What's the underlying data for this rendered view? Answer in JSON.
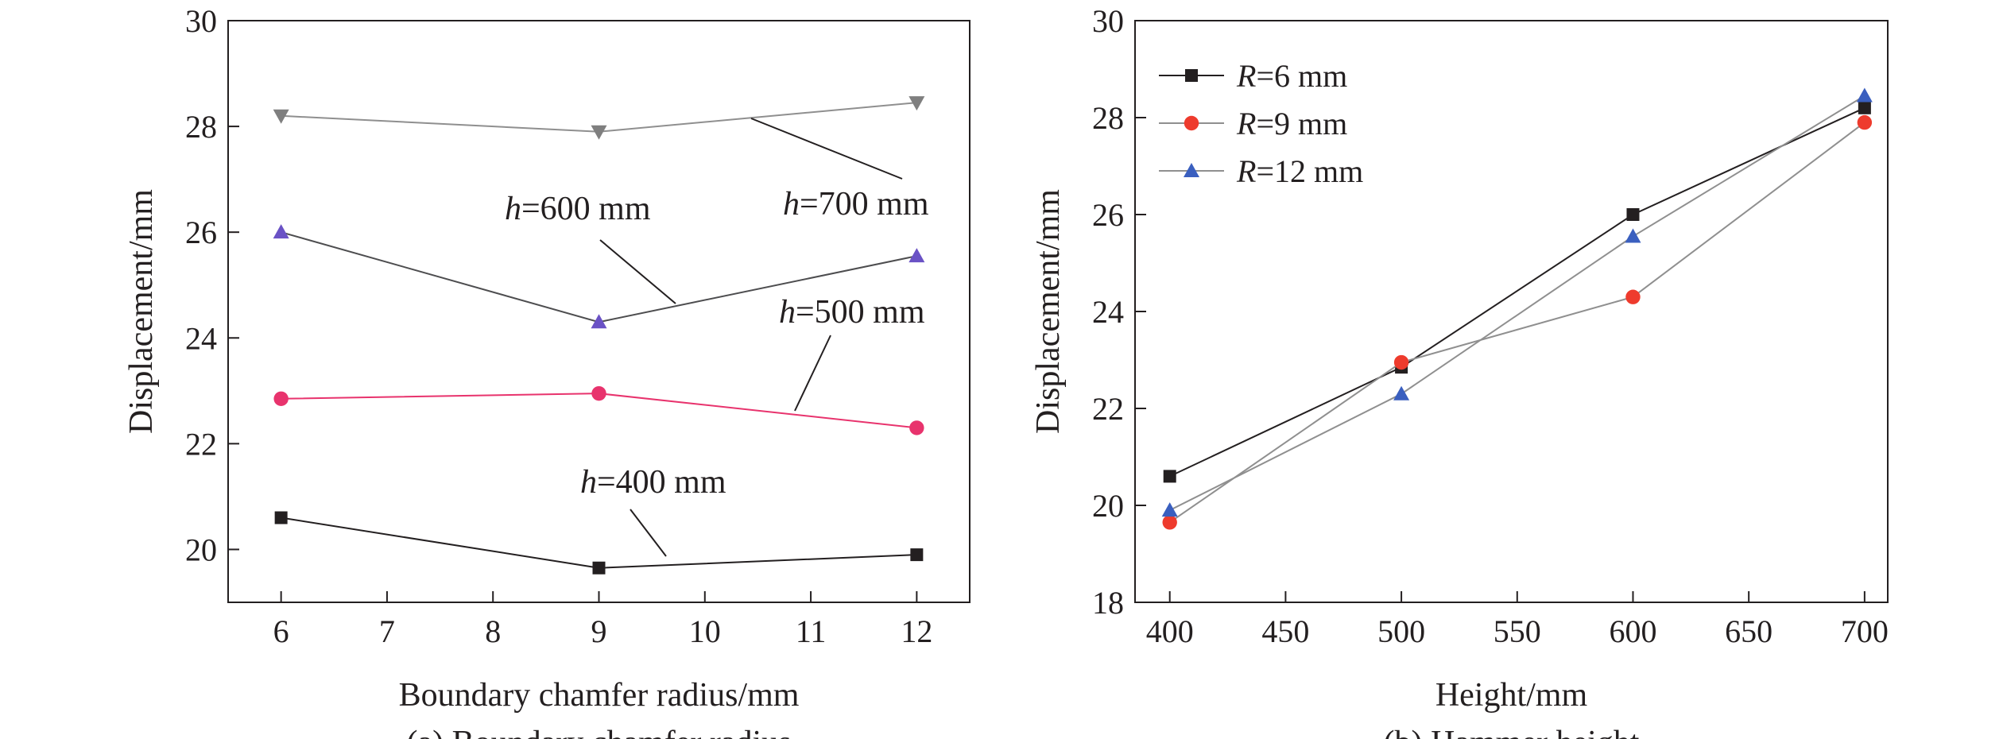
{
  "chart_data": [
    {
      "type": "line",
      "caption": "(a) Boundary chamfer radius",
      "xlabel": "Boundary chamfer radius/mm",
      "ylabel": "Displacement/mm",
      "xlim": [
        5.5,
        12.5
      ],
      "ylim": [
        19,
        30
      ],
      "xticks": [
        6,
        7,
        8,
        9,
        10,
        11,
        12
      ],
      "yticks": [
        20,
        22,
        24,
        26,
        28,
        30
      ],
      "x": [
        6,
        9,
        12
      ],
      "series": [
        {
          "name": "h=400 mm",
          "italic": "h",
          "rest": "=400 mm",
          "color": "#231f20",
          "marker": "square",
          "marker_color": "#231f20",
          "values": [
            20.6,
            19.65,
            19.9
          ]
        },
        {
          "name": "h=500 mm",
          "italic": "h",
          "rest": "=500 mm",
          "color": "#e8336d",
          "marker": "circle",
          "marker_color": "#e8336d",
          "values": [
            22.85,
            22.95,
            22.3
          ]
        },
        {
          "name": "h=600 mm",
          "italic": "h",
          "rest": "=600 mm",
          "color": "#4d4d4f",
          "marker": "triangle-up",
          "marker_color": "#6a52c5",
          "values": [
            26.0,
            24.3,
            25.55
          ]
        },
        {
          "name": "h=700 mm",
          "italic": "h",
          "rest": "=700 mm",
          "color": "#8f8f8f",
          "marker": "triangle-down",
          "marker_color": "#7f7f7f",
          "values": [
            28.2,
            27.9,
            28.45
          ]
        }
      ]
    },
    {
      "type": "line",
      "caption": "(b) Hammer height",
      "xlabel": "Height/mm",
      "ylabel": "Displacement/mm",
      "xlim": [
        385,
        710
      ],
      "ylim": [
        18,
        30
      ],
      "xticks": [
        400,
        450,
        500,
        550,
        600,
        650,
        700
      ],
      "yticks": [
        18,
        20,
        22,
        24,
        26,
        28,
        30
      ],
      "x": [
        400,
        500,
        600,
        700
      ],
      "legend_position": "top-left",
      "series": [
        {
          "name": "R=6 mm",
          "italic": "R",
          "rest": "=6 mm",
          "color": "#231f20",
          "marker": "square",
          "marker_color": "#231f20",
          "values": [
            20.6,
            22.85,
            26.0,
            28.2
          ]
        },
        {
          "name": "R=9 mm",
          "italic": "R",
          "rest": "=9 mm",
          "color": "#8f8f8f",
          "marker": "circle",
          "marker_color": "#ee3b2d",
          "values": [
            19.65,
            22.95,
            24.3,
            27.9
          ]
        },
        {
          "name": "R=12 mm",
          "italic": "R",
          "rest": "=12 mm",
          "color": "#8f8f8f",
          "marker": "triangle-up",
          "marker_color": "#3a5fbf",
          "values": [
            19.9,
            22.3,
            25.55,
            28.45
          ]
        }
      ]
    }
  ]
}
